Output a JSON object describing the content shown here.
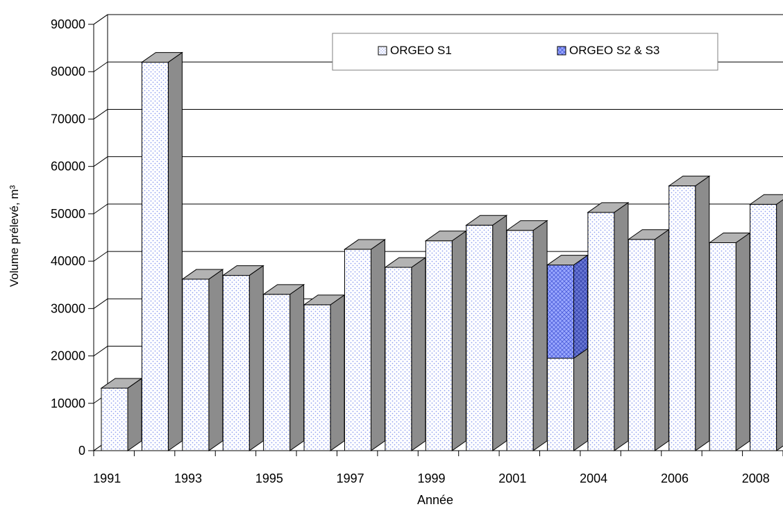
{
  "chart_data": {
    "type": "bar",
    "stacked": true,
    "categories": [
      "1991",
      "1992",
      "1993",
      "1994",
      "1995",
      "1996",
      "1997",
      "1998",
      "1999",
      "2000",
      "2001",
      "2002",
      "2004",
      "2005",
      "2006",
      "2007",
      "2008"
    ],
    "x_tick_labels": [
      "1991",
      "",
      "1993",
      "",
      "1995",
      "",
      "1997",
      "",
      "1999",
      "",
      "2001",
      "",
      "2004",
      "",
      "2006",
      "",
      "2008"
    ],
    "series": [
      {
        "name": "ORGEO S1",
        "values": [
          13200,
          82000,
          36200,
          37000,
          33000,
          30800,
          42500,
          38700,
          44300,
          47600,
          46500,
          19500,
          50300,
          44600,
          55900,
          43900,
          52000
        ],
        "color": "#ffffff",
        "pattern": "dots"
      },
      {
        "name": "ORGEO S2 & S3",
        "values": [
          0,
          0,
          0,
          0,
          0,
          0,
          0,
          0,
          0,
          0,
          0,
          19700,
          0,
          0,
          0,
          0,
          0
        ],
        "color": "#9aa8ff",
        "pattern": "crosshatch"
      }
    ],
    "xlabel": "Année",
    "ylabel": "Volume prélevé, m³",
    "ylim": [
      0,
      90000
    ],
    "yticks": [
      0,
      10000,
      20000,
      30000,
      40000,
      50000,
      60000,
      70000,
      80000,
      90000
    ],
    "grid": true,
    "legend_position": "top-right"
  }
}
